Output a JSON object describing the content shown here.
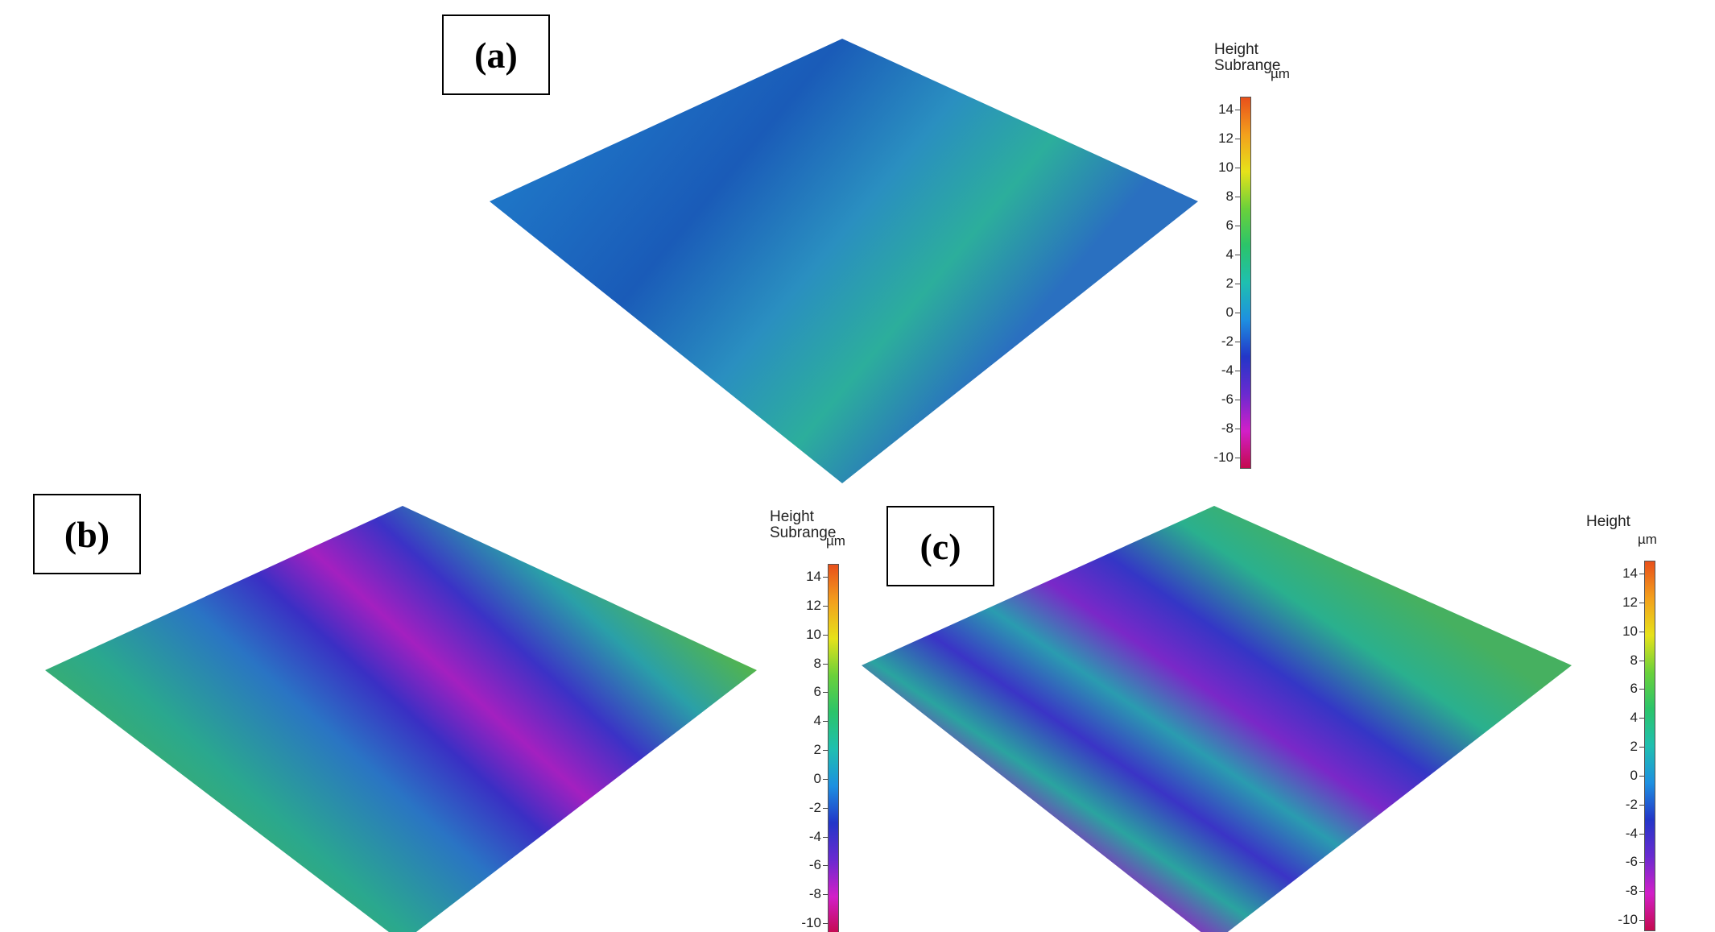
{
  "panels": {
    "a": {
      "label": "(a)"
    },
    "b": {
      "label": "(b)"
    },
    "c": {
      "label": "(c)"
    }
  },
  "colorbars": {
    "a": {
      "title_line1": "Height",
      "title_line2": "Subrange",
      "unit": "µm",
      "ticks": [
        "14",
        "12",
        "10",
        "8",
        "6",
        "4",
        "2",
        "0",
        "-2",
        "-4",
        "-6",
        "-8",
        "-10"
      ]
    },
    "b": {
      "title_line1": "Height",
      "title_line2": "Subrange",
      "unit": "µm",
      "ticks": [
        "14",
        "12",
        "10",
        "8",
        "6",
        "4",
        "2",
        "0",
        "-2",
        "-4",
        "-6",
        "-8",
        "-10"
      ]
    },
    "c": {
      "title_line1": "Height",
      "title_line2": "",
      "unit": "µm",
      "ticks": [
        "14",
        "12",
        "10",
        "8",
        "6",
        "4",
        "2",
        "0",
        "-2",
        "-4",
        "-6",
        "-8",
        "-10"
      ]
    }
  },
  "colors": {
    "ramp": [
      "#e8501b",
      "#f3a01c",
      "#e6e21a",
      "#6bd13a",
      "#2bc46a",
      "#1fbfb0",
      "#1e90e0",
      "#2336c8",
      "#6a2ad0",
      "#d21fc8",
      "#c40a4e"
    ]
  }
}
